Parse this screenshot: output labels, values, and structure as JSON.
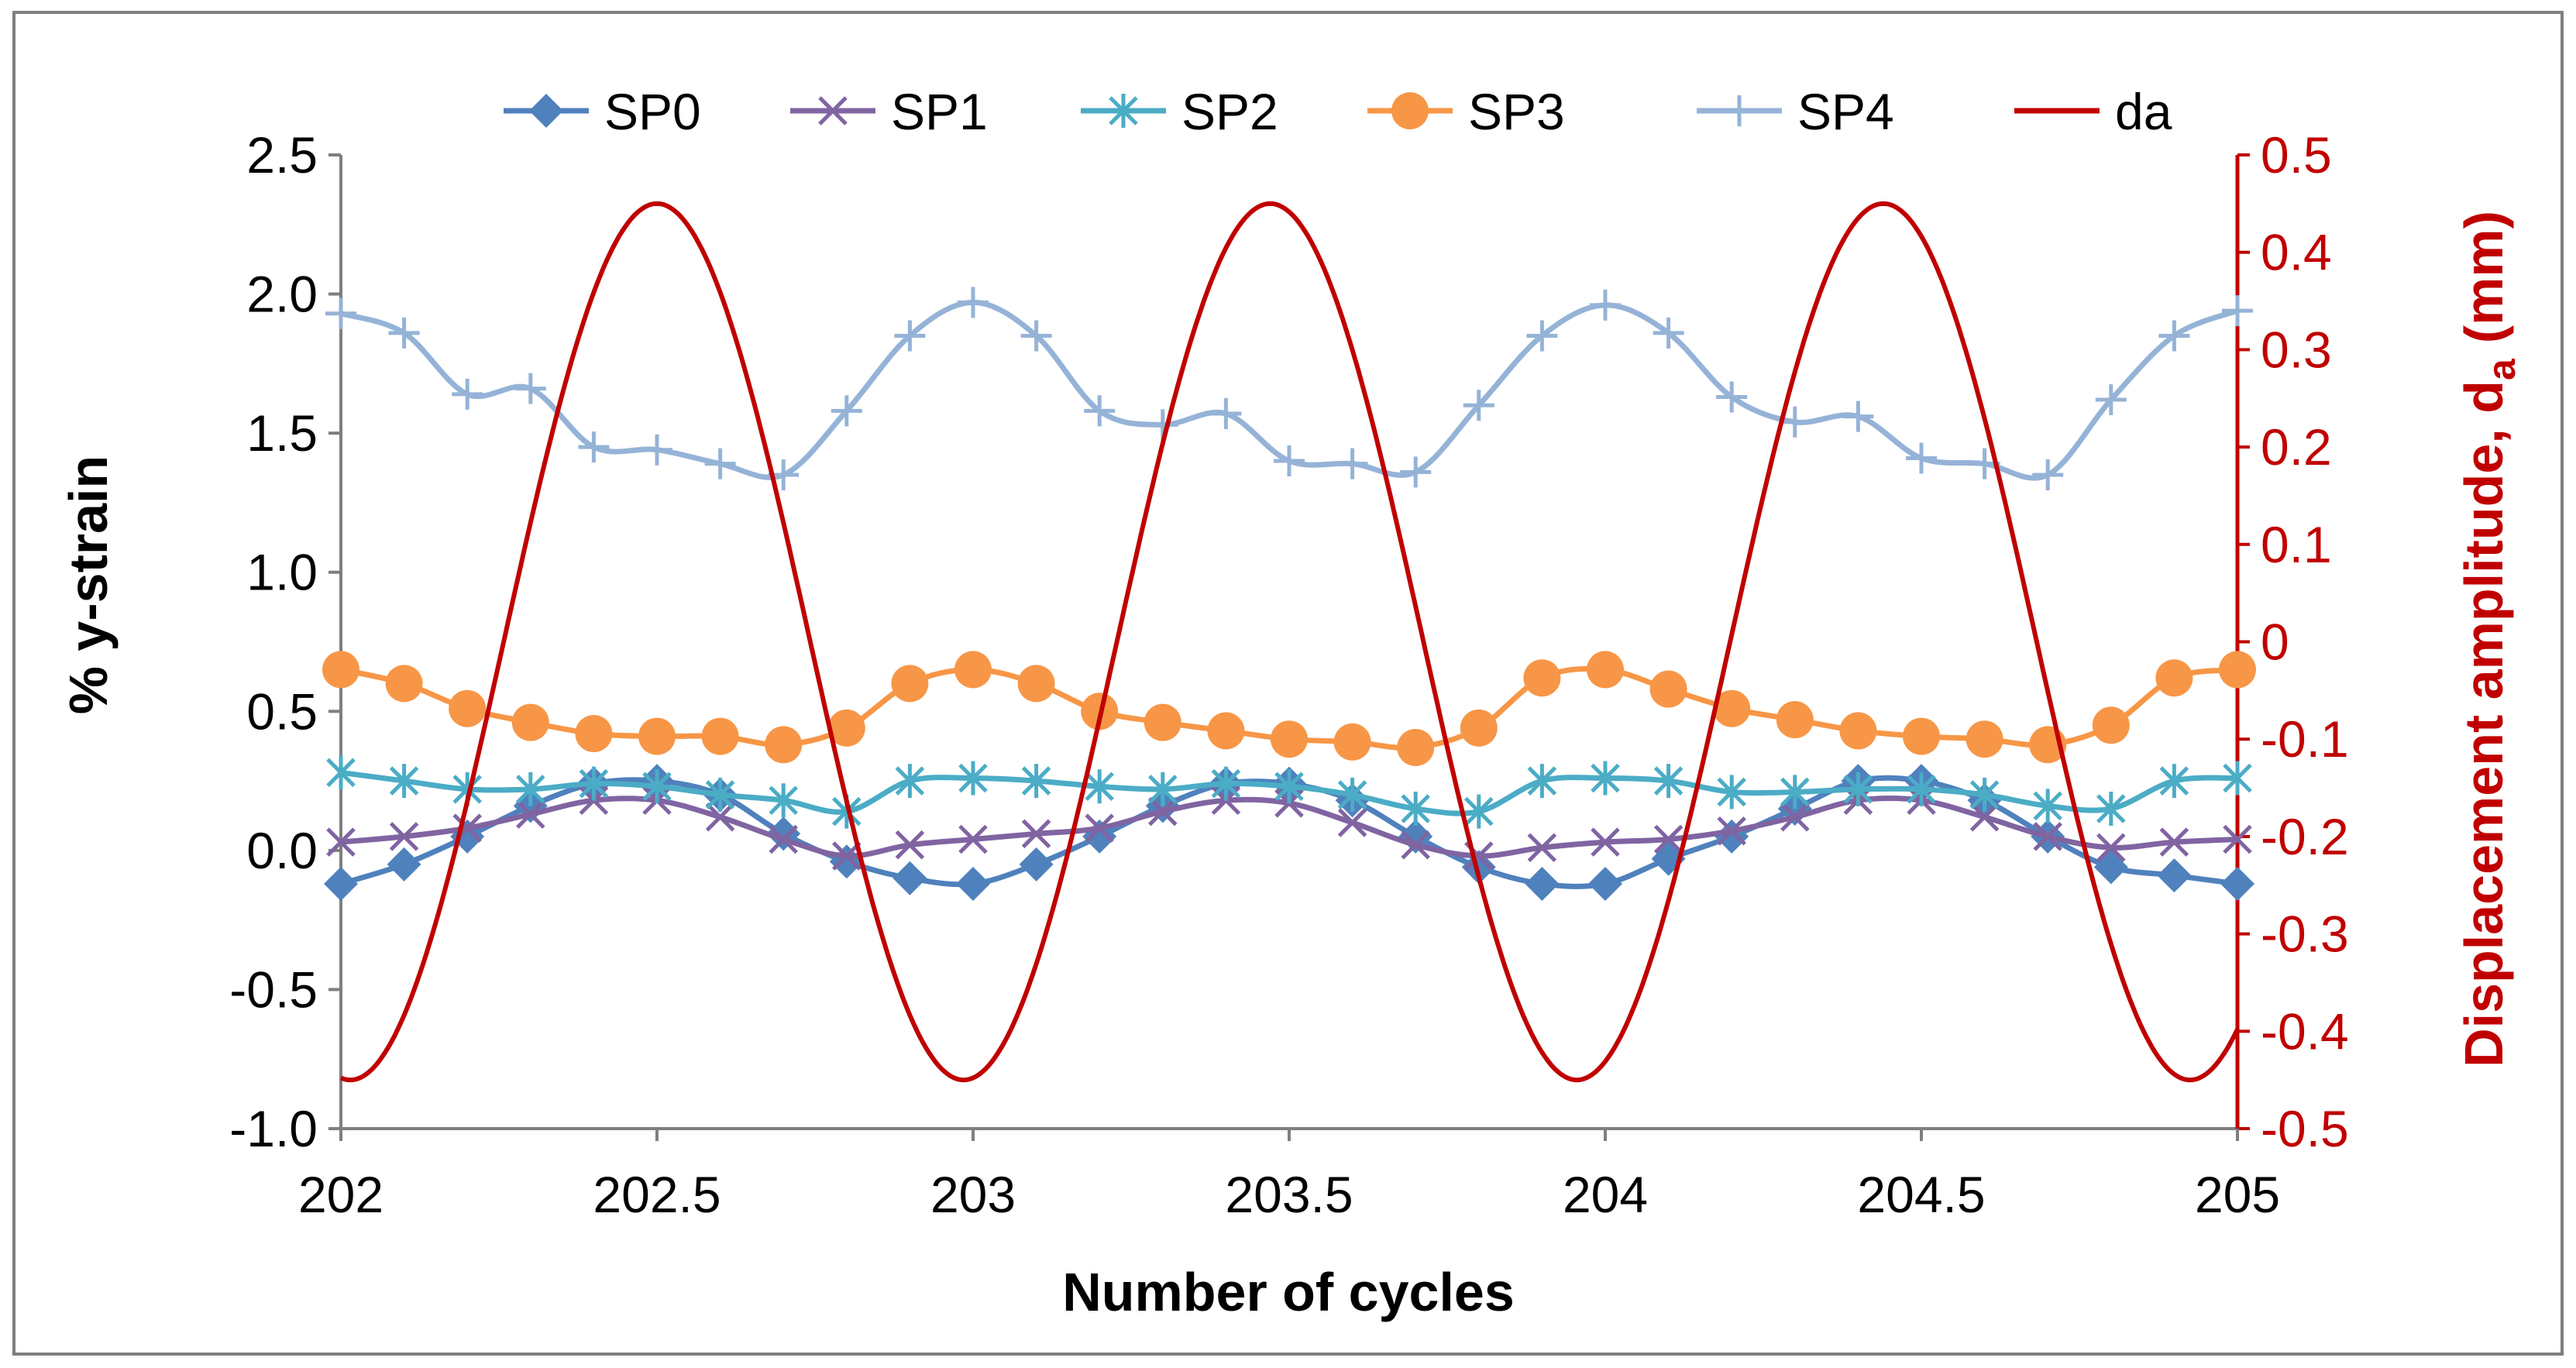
{
  "chart_data": {
    "type": "line",
    "title": "",
    "xlabel": "Number of cycles",
    "ylabel": "% y-strain",
    "y2label_main": "Displacement amplitude, d",
    "y2label_sub": "a",
    "y2label_unit": "(mm)",
    "xlim": [
      202,
      205
    ],
    "ylim": [
      -1.0,
      2.5
    ],
    "y2lim": [
      -0.5,
      0.5
    ],
    "x_ticks": [
      "202",
      "202.5",
      "203",
      "203.5",
      "204",
      "204.5",
      "205"
    ],
    "x_tick_values": [
      202,
      202.5,
      203,
      203.5,
      204,
      204.5,
      205
    ],
    "y_ticks": [
      "2.5",
      "2.0",
      "1.5",
      "1.0",
      "0.5",
      "0.0",
      "-0.5",
      "-1.0"
    ],
    "y_tick_values": [
      2.5,
      2.0,
      1.5,
      1.0,
      0.5,
      0.0,
      -0.5,
      -1.0
    ],
    "y2_ticks": [
      "0.5",
      "0.4",
      "0.3",
      "0.2",
      "0.1",
      "0",
      "-0.1",
      "-0.2",
      "-0.3",
      "-0.4",
      "-0.5"
    ],
    "y2_tick_values": [
      0.5,
      0.4,
      0.3,
      0.2,
      0.1,
      0,
      -0.1,
      -0.2,
      -0.3,
      -0.4,
      -0.5
    ],
    "grid": false,
    "legend_position": "top",
    "x": [
      202.0,
      202.1,
      202.2,
      202.3,
      202.4,
      202.5,
      202.6,
      202.7,
      202.8,
      202.9,
      203.0,
      203.1,
      203.2,
      203.3,
      203.4,
      203.5,
      203.6,
      203.7,
      203.8,
      203.9,
      204.0,
      204.1,
      204.2,
      204.3,
      204.4,
      204.5,
      204.6,
      204.7,
      204.8,
      204.9,
      205.0
    ],
    "series": [
      {
        "name": "SP0",
        "color": "#4f81bd",
        "marker": "diamond",
        "axis": "left",
        "values": [
          -0.12,
          -0.05,
          0.05,
          0.16,
          0.24,
          0.25,
          0.2,
          0.06,
          -0.04,
          -0.1,
          -0.12,
          -0.05,
          0.05,
          0.16,
          0.24,
          0.24,
          0.18,
          0.05,
          -0.06,
          -0.12,
          -0.12,
          -0.03,
          0.05,
          0.15,
          0.25,
          0.25,
          0.18,
          0.05,
          -0.06,
          -0.09,
          -0.12
        ]
      },
      {
        "name": "SP1",
        "color": "#8064a2",
        "marker": "x",
        "axis": "left",
        "values": [
          0.03,
          0.05,
          0.08,
          0.13,
          0.18,
          0.18,
          0.12,
          0.04,
          -0.02,
          0.02,
          0.04,
          0.06,
          0.08,
          0.14,
          0.18,
          0.17,
          0.1,
          0.02,
          -0.02,
          0.01,
          0.03,
          0.04,
          0.07,
          0.12,
          0.18,
          0.18,
          0.12,
          0.05,
          0.01,
          0.03,
          0.04
        ]
      },
      {
        "name": "SP2",
        "color": "#4bacc6",
        "marker": "star",
        "axis": "left",
        "values": [
          0.28,
          0.25,
          0.22,
          0.22,
          0.24,
          0.23,
          0.2,
          0.18,
          0.14,
          0.25,
          0.26,
          0.25,
          0.23,
          0.22,
          0.24,
          0.23,
          0.2,
          0.15,
          0.14,
          0.25,
          0.26,
          0.25,
          0.21,
          0.21,
          0.22,
          0.22,
          0.2,
          0.16,
          0.15,
          0.25,
          0.26
        ]
      },
      {
        "name": "SP3",
        "color": "#f79646",
        "marker": "circle",
        "axis": "left",
        "values": [
          0.65,
          0.6,
          0.51,
          0.46,
          0.42,
          0.41,
          0.41,
          0.38,
          0.44,
          0.6,
          0.65,
          0.6,
          0.5,
          0.46,
          0.43,
          0.4,
          0.39,
          0.37,
          0.44,
          0.62,
          0.65,
          0.58,
          0.51,
          0.47,
          0.43,
          0.41,
          0.4,
          0.38,
          0.45,
          0.62,
          0.65
        ]
      },
      {
        "name": "SP4",
        "color": "#95b3d7",
        "marker": "plus",
        "axis": "left",
        "values": [
          1.93,
          1.86,
          1.64,
          1.66,
          1.45,
          1.44,
          1.39,
          1.35,
          1.58,
          1.85,
          1.97,
          1.85,
          1.58,
          1.53,
          1.57,
          1.4,
          1.39,
          1.36,
          1.6,
          1.85,
          1.96,
          1.86,
          1.63,
          1.54,
          1.56,
          1.41,
          1.39,
          1.35,
          1.62,
          1.85,
          1.94
        ]
      },
      {
        "name": "da",
        "color": "#c00000",
        "marker": "none",
        "axis": "right",
        "function": "sine",
        "amplitude": 0.45,
        "period": 0.97,
        "peak_cycles": [
          202.5,
          203.48,
          204.45
        ],
        "start_value": -0.41,
        "end_value": -0.36
      }
    ]
  }
}
